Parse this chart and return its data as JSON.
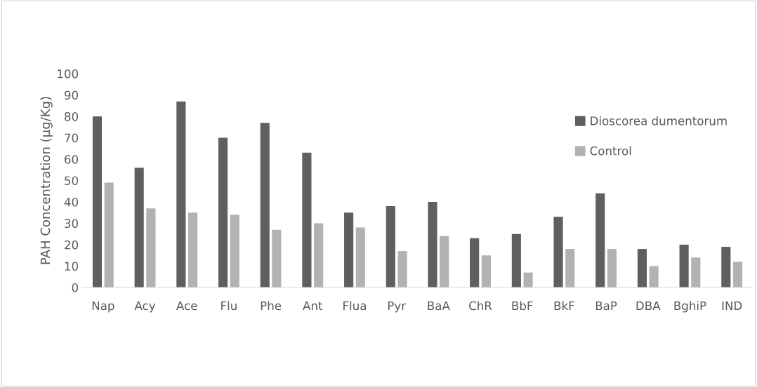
{
  "chart_data": {
    "type": "bar",
    "ylabel": "PAH Concentration (µg/Kg)",
    "categories": [
      "Nap",
      "Acy",
      "Ace",
      "Flu",
      "Phe",
      "Ant",
      "Flua",
      "Pyr",
      "BaA",
      "ChR",
      "BbF",
      "BkF",
      "BaP",
      "DBA",
      "BghiP",
      "IND"
    ],
    "series": [
      {
        "name": "Dioscorea dumentorum",
        "color": "#5f5f5f",
        "values": [
          80,
          56,
          87,
          70,
          77,
          63,
          35,
          38,
          40,
          23,
          25,
          33,
          44,
          18,
          20,
          19
        ]
      },
      {
        "name": "Control",
        "color": "#b2b2b2",
        "values": [
          49,
          37,
          35,
          34,
          27,
          30,
          28,
          17,
          24,
          15,
          7,
          18,
          18,
          10,
          14,
          12
        ]
      }
    ],
    "ylim": [
      0,
      100
    ],
    "yticks": [
      0,
      10,
      20,
      30,
      40,
      50,
      60,
      70,
      80,
      90,
      100
    ],
    "grid": false,
    "legend": "right"
  }
}
